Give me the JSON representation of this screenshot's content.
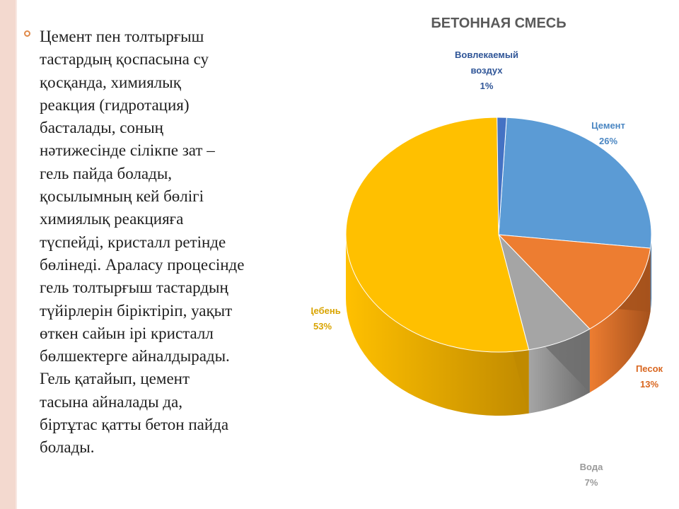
{
  "slide": {
    "paragraph": "Цемент пен толтырғыш\nтастардың қоспасына су\nқосқанда, химиялық\nреакция (гидротация)\nбасталады, соның\nнәтижесінде сілікпе зат –\nгель пайда болады,\nқосылымның кей бөлігі\nхимиялық реакцияға\nтүспейді, кристалл ретінде\nбөлінеді. Араласу процесінде\nгель толтырғыш тастардың\nтүйірлерін біріктіріп, уақыт\nөткен сайын ірі кристалл\nбөлшектерге айналдырады.\nГель қатайып, цемент\nтасына айналады да,\nбіртұтас қатты бетон пайда\nболады."
  },
  "chart_data": {
    "type": "pie",
    "title": "БЕТОННАЯ СМЕСЬ",
    "slices": [
      {
        "label_lines": [
          "Цемент",
          "26%"
        ],
        "value": 26,
        "color": "#5b9bd5",
        "side": "#2e5d8a",
        "label_color": "#4a86c2"
      },
      {
        "label_lines": [
          "Песок",
          "13%"
        ],
        "value": 13,
        "color": "#ed7d31",
        "side": "#a6521c",
        "label_color": "#d9661f"
      },
      {
        "label_lines": [
          "Вода",
          "7%"
        ],
        "value": 7,
        "color": "#a5a5a5",
        "side": "#6e6e6e",
        "label_color": "#9a9a9a"
      },
      {
        "label_lines": [
          "Щебень",
          "53%"
        ],
        "value": 53,
        "color": "#ffc000",
        "side": "#c08a00",
        "label_color": "#d9a400"
      },
      {
        "label_lines": [
          "Вовлекаемый",
          "воздух",
          "1%"
        ],
        "value": 1,
        "color": "#4472c4",
        "side": "#2a4a85",
        "label_color": "#2f5597"
      }
    ]
  }
}
